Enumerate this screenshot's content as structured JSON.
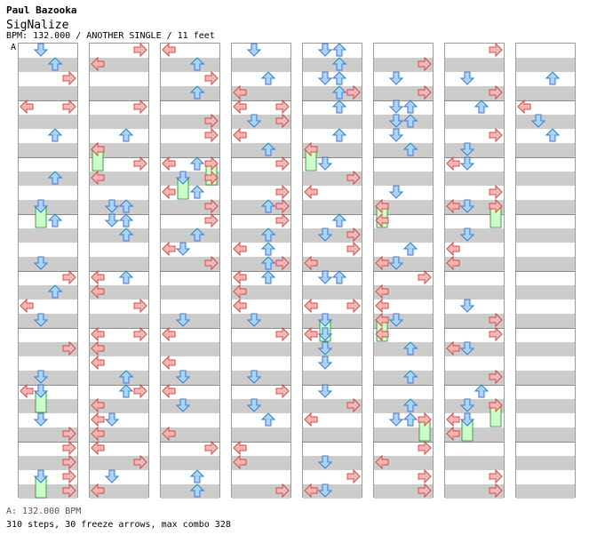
{
  "header": {
    "artist": "Paul Bazooka",
    "title": "SigNalize",
    "info": "BPM: 132.000 / ANOTHER SINGLE / 11 feet",
    "marker": "A"
  },
  "footer": {
    "bpm_line": "A: 132.000 BPM",
    "stats": "310 steps, 30 freeze arrows, max combo 328"
  },
  "colors": {
    "left_right_arrow": "#ffb4b4",
    "up_down_arrow": "#a8d4ff",
    "freeze": "#ccffcc",
    "band": "#cccccc"
  },
  "icons": [
    "left-arrow-icon",
    "down-arrow-icon",
    "up-arrow-icon",
    "right-arrow-icon",
    "freeze-arrow-icon"
  ]
}
